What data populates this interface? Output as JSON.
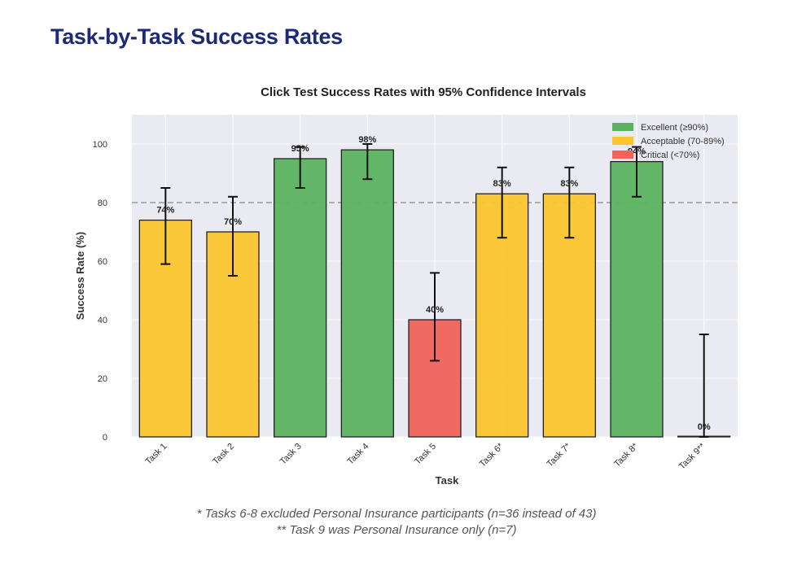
{
  "page": {
    "title": "Task-by-Task Success Rates",
    "footnotes": [
      "* Tasks 6-8 excluded Personal Insurance participants (n=36 instead of 43)",
      "** Task 9 was Personal Insurance only (n=7)"
    ]
  },
  "chart_data": {
    "type": "bar",
    "title": "Click Test Success Rates with 95% Confidence Intervals",
    "xlabel": "Task",
    "ylabel": "Success Rate (%)",
    "ylim": [
      0,
      110
    ],
    "yticks": [
      0,
      20,
      40,
      60,
      80,
      100
    ],
    "grid": true,
    "threshold": 80,
    "categories": [
      "Task 1",
      "Task 2",
      "Task 3",
      "Task 4",
      "Task 5",
      "Task 6*",
      "Task 7*",
      "Task 8*",
      "Task 9**"
    ],
    "values": [
      74,
      70,
      95,
      98,
      40,
      83,
      83,
      94,
      0
    ],
    "value_labels": [
      "74%",
      "70%",
      "95%",
      "98%",
      "40%",
      "83%",
      "83%",
      "94%",
      "0%"
    ],
    "ci_low": [
      59,
      55,
      85,
      88,
      26,
      68,
      68,
      82,
      0
    ],
    "ci_high": [
      85,
      82,
      99,
      100,
      56,
      92,
      92,
      99,
      35
    ],
    "bar_categories": [
      "acceptable",
      "acceptable",
      "excellent",
      "excellent",
      "critical",
      "acceptable",
      "acceptable",
      "excellent",
      "critical"
    ],
    "colors": {
      "excellent": "#5cb35f",
      "acceptable": "#fbc52e",
      "critical": "#f0625a",
      "background": "#eaeaf2",
      "threshold": "#9a9a9a"
    },
    "legend": {
      "position": "top-right",
      "items": [
        {
          "key": "excellent",
          "label": "Excellent (≥90%)"
        },
        {
          "key": "acceptable",
          "label": "Acceptable (70-89%)"
        },
        {
          "key": "critical",
          "label": "Critical (<70%)"
        }
      ]
    }
  }
}
